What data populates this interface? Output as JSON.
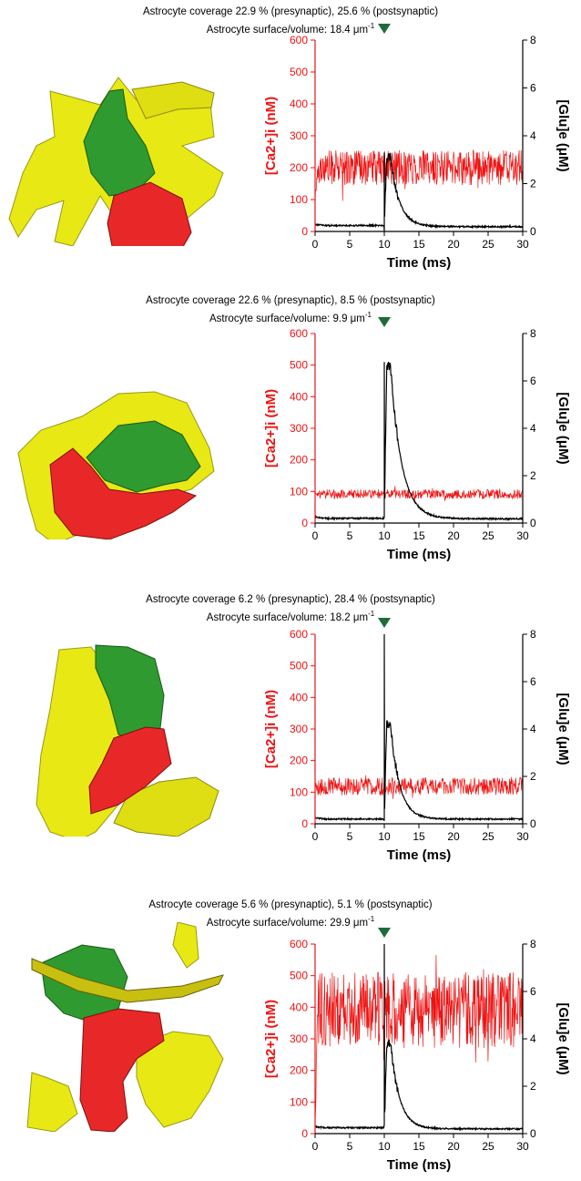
{
  "colors": {
    "ca": "#ee1111",
    "glu": "#000000",
    "marker": "#1e6b3a",
    "astro": "#e8e815",
    "pre": "#2f9a2f",
    "post": "#e82828"
  },
  "panels": [
    {
      "caption1": "Astrocyte coverage 22.9 % (presynaptic), 25.6 % (postsynaptic)",
      "caption2": "Astrocyte surface/volume: 18.4 μm",
      "caption_sup": "-1",
      "render_name": "astrocyte-synapse-render-1"
    },
    {
      "caption1": "Astrocyte coverage 22.6 % (presynaptic), 8.5 % (postsynaptic)",
      "caption2": "Astrocyte surface/volume: 9.9 μm",
      "caption_sup": "-1",
      "render_name": "astrocyte-synapse-render-2"
    },
    {
      "caption1": "Astrocyte coverage 6.2 % (presynaptic), 28.4 % (postsynaptic)",
      "caption2": "Astrocyte surface/volume: 18.2 μm",
      "caption_sup": "-1",
      "render_name": "astrocyte-synapse-render-3"
    },
    {
      "caption1": "Astrocyte coverage 5.6 % (presynaptic), 5.1 % (postsynaptic)",
      "caption2": "Astrocyte surface/volume: 29.9 μm",
      "caption_sup": "-1",
      "render_name": "astrocyte-synapse-render-4"
    }
  ],
  "chart_data": [
    {
      "type": "line",
      "xlabel": "Time (ms)",
      "ylabel": "[Ca2+]i (nM)",
      "y2label": "[Glu]e (μM)",
      "xlim": [
        0,
        30
      ],
      "ylim": [
        0,
        600
      ],
      "y2lim": [
        0,
        8
      ],
      "xticks": [
        0,
        5,
        10,
        15,
        20,
        25,
        30
      ],
      "yticks": [
        0,
        100,
        200,
        300,
        400,
        500,
        600
      ],
      "y2ticks": [
        0,
        2,
        4,
        6,
        8
      ],
      "stimulus_time": 10,
      "series": [
        {
          "name": "[Ca2+]i",
          "axis": "left",
          "baseline": 200,
          "noise_amplitude": 55,
          "start": 100
        },
        {
          "name": "[Glu]e",
          "axis": "right",
          "baseline": 0.25,
          "pre_stim": 0.3,
          "spike": 3.3,
          "peak": 3.1,
          "decay_tau_ms": 1.3,
          "end": 0.2
        }
      ]
    },
    {
      "type": "line",
      "xlabel": "Time (ms)",
      "ylabel": "[Ca2+]i (nM)",
      "y2label": "[Glu]e (μM)",
      "xlim": [
        0,
        30
      ],
      "ylim": [
        0,
        600
      ],
      "y2lim": [
        0,
        8
      ],
      "xticks": [
        0,
        5,
        10,
        15,
        20,
        25,
        30
      ],
      "yticks": [
        0,
        100,
        200,
        300,
        400,
        500,
        600
      ],
      "y2ticks": [
        0,
        2,
        4,
        6,
        8
      ],
      "stimulus_time": 10,
      "series": [
        {
          "name": "[Ca2+]i",
          "axis": "left",
          "baseline": 92,
          "noise_amplitude": 15,
          "start": 92
        },
        {
          "name": "[Glu]e",
          "axis": "right",
          "baseline": 0.2,
          "pre_stim": 0.25,
          "spike": 6.8,
          "peak": 6.6,
          "decay_tau_ms": 1.6,
          "end": 0.18
        }
      ]
    },
    {
      "type": "line",
      "xlabel": "Time (ms)",
      "ylabel": "[Ca2+]i (nM)",
      "y2label": "[Glu]e (μM)",
      "xlim": [
        0,
        30
      ],
      "ylim": [
        0,
        600
      ],
      "y2lim": [
        0,
        8
      ],
      "xticks": [
        0,
        5,
        10,
        15,
        20,
        25,
        30
      ],
      "yticks": [
        0,
        100,
        200,
        300,
        400,
        500,
        600
      ],
      "y2ticks": [
        0,
        2,
        4,
        6,
        8
      ],
      "stimulus_time": 10,
      "series": [
        {
          "name": "[Ca2+]i",
          "axis": "left",
          "baseline": 118,
          "noise_amplitude": 28,
          "start": 118
        },
        {
          "name": "[Glu]e",
          "axis": "right",
          "baseline": 0.2,
          "pre_stim": 0.25,
          "spike": 8.0,
          "peak": 4.2,
          "decay_tau_ms": 1.3,
          "end": 0.2
        }
      ]
    },
    {
      "type": "line",
      "xlabel": "Time (ms)",
      "ylabel": "[Ca2+]i (nM)",
      "y2label": "[Glu]e (μM)",
      "xlim": [
        0,
        30
      ],
      "ylim": [
        0,
        600
      ],
      "y2lim": [
        0,
        8
      ],
      "xticks": [
        0,
        5,
        10,
        15,
        20,
        25,
        30
      ],
      "yticks": [
        0,
        100,
        200,
        300,
        400,
        500,
        600
      ],
      "y2ticks": [
        0,
        2,
        4,
        6,
        8
      ],
      "stimulus_time": 10,
      "series": [
        {
          "name": "[Ca2+]i",
          "axis": "left",
          "baseline": 390,
          "noise_amplitude": 120,
          "start": 50
        },
        {
          "name": "[Glu]e",
          "axis": "right",
          "baseline": 0.25,
          "pre_stim": 0.3,
          "spike": 8.0,
          "peak": 3.8,
          "decay_tau_ms": 1.3,
          "end": 0.2
        }
      ]
    }
  ]
}
